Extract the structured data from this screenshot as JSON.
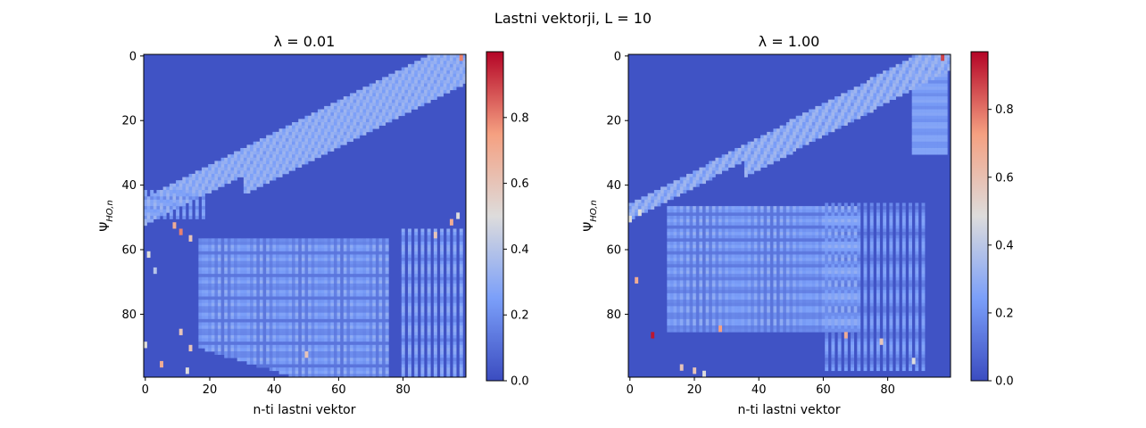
{
  "figure": {
    "suptitle": "Lastni vektorji, L = 10"
  },
  "chart_data": [
    {
      "type": "heatmap",
      "title": "λ = 0.01",
      "xlabel": "n-ti lastni vektor",
      "ylabel": "Ψ_{HO,n}",
      "x_ticks": [
        0,
        20,
        40,
        60,
        80
      ],
      "y_ticks": [
        0,
        20,
        40,
        60,
        80
      ],
      "xlim": [
        -0.5,
        99.5
      ],
      "ylim": [
        99.5,
        -0.5
      ],
      "colorbar_ticks": [
        "0.0",
        "0.2",
        "0.4",
        "0.6",
        "0.8"
      ],
      "colorbar_range": [
        0,
        1.0
      ],
      "colormap": "coolwarm",
      "matrix_size": [
        100,
        100
      ]
    },
    {
      "type": "heatmap",
      "title": "λ = 1.00",
      "xlabel": "n-ti lastni vektor",
      "ylabel": "Ψ_{HO,n}",
      "x_ticks": [
        0,
        20,
        40,
        60,
        80
      ],
      "y_ticks": [
        0,
        20,
        40,
        60,
        80
      ],
      "xlim": [
        -0.5,
        99.5
      ],
      "ylim": [
        99.5,
        -0.5
      ],
      "colorbar_ticks": [
        "0.0",
        "0.2",
        "0.4",
        "0.6",
        "0.8"
      ],
      "colorbar_range": [
        0,
        0.97
      ],
      "colormap": "coolwarm",
      "matrix_size": [
        100,
        100
      ]
    }
  ]
}
